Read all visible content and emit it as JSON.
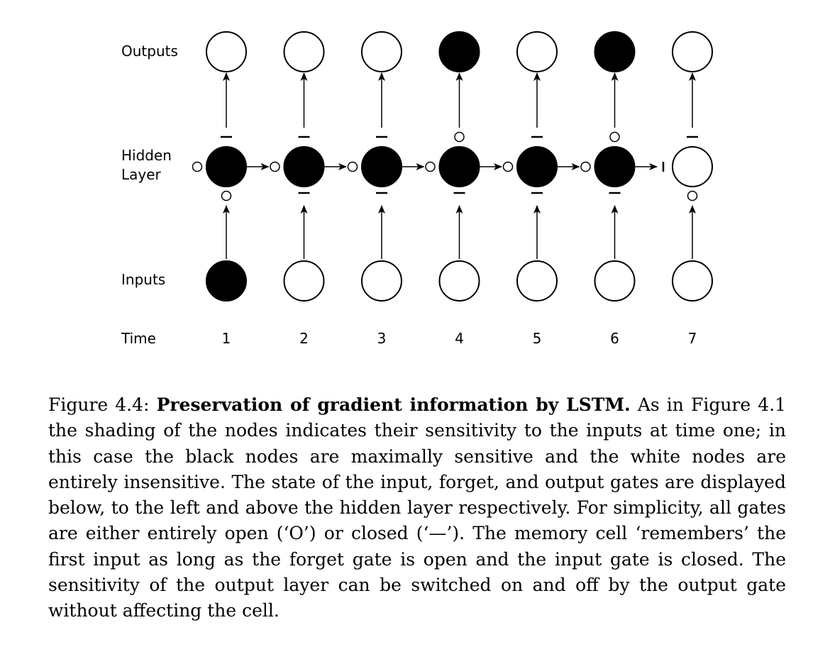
{
  "diagram": {
    "row_labels": {
      "outputs": "Outputs",
      "hidden_line1": "Hidden",
      "hidden_line2": "Layer",
      "inputs": "Inputs",
      "time": "Time"
    },
    "timesteps": [
      "1",
      "2",
      "3",
      "4",
      "5",
      "6",
      "7"
    ],
    "node_sensitivity": {
      "inputs": [
        1,
        0,
        0,
        0,
        0,
        0,
        0
      ],
      "hidden": [
        1,
        1,
        1,
        1,
        1,
        1,
        0
      ],
      "outputs": [
        0,
        0,
        0,
        1,
        0,
        1,
        0
      ]
    },
    "gates": {
      "input": [
        "open",
        "closed",
        "closed",
        "closed",
        "closed",
        "closed",
        "open"
      ],
      "forget": [
        "open",
        "open",
        "open",
        "open",
        "open",
        "open",
        "closed"
      ],
      "output": [
        "closed",
        "closed",
        "closed",
        "open",
        "closed",
        "open",
        "closed"
      ]
    },
    "colors": {
      "sensitive": "#000000",
      "insensitive": "#ffffff",
      "stroke": "#000000"
    }
  },
  "caption": {
    "figure_label": "Figure 4.4:",
    "bold_title": "Preservation of gradient information by LSTM.",
    "body": "As in Figure 4.1 the shading of the nodes indicates their sensitivity to the inputs at time one; in this case the black nodes are maximally sensitive and the white nodes are entirely insensitive. The state of the input, forget, and output gates are displayed below, to the left and above the hidden layer respectively. For simplicity, all gates are either entirely open (‘O’) or closed (‘—’). The memory cell ‘remembers’ the first input as long as the forget gate is open and the input gate is closed. The sensitivity of the output layer can be switched on and off by the output gate without affecting the cell."
  }
}
